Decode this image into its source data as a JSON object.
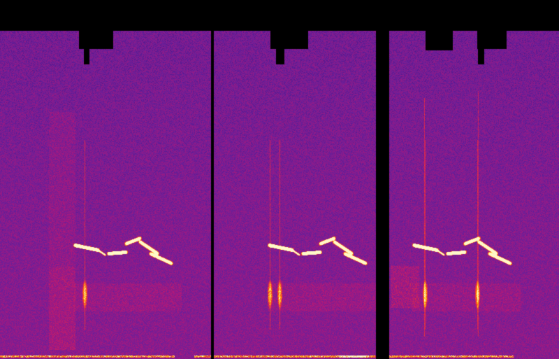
{
  "image": {
    "kind": "spectrogram",
    "panels": 3,
    "colormap": [
      "#000000",
      "#2a0a6e",
      "#6a1f9a",
      "#b2187a",
      "#e8313c",
      "#ff7a12",
      "#ffd21a",
      "#fff9c8"
    ],
    "background_color": "#000000",
    "field_color": "#5e1e96"
  }
}
